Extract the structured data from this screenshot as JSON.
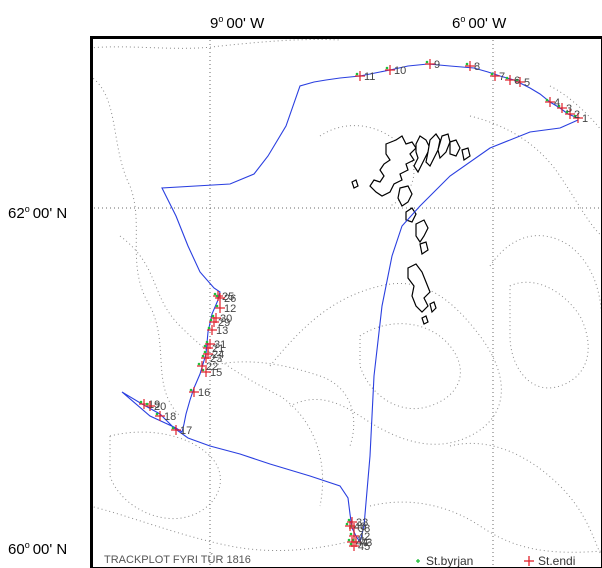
{
  "top_labels": [
    {
      "deg": "9",
      "rest": "00' W"
    },
    {
      "deg": "6",
      "rest": "00' W"
    }
  ],
  "left_labels": [
    {
      "deg": "62",
      "rest": "00' N"
    },
    {
      "deg": "60",
      "rest": "00' N"
    }
  ],
  "title": "TRACKPLOT FYRI TÚR 1816",
  "legend": {
    "start": {
      "label": "St.byrjan",
      "color": "#1fbf3a"
    },
    "end": {
      "label": "St.endi",
      "color": "#e0202a"
    }
  },
  "colors": {
    "track": "#2a3fe0",
    "station_label": "#444444",
    "coast": "#000000"
  },
  "stations": [
    {
      "label": "1",
      "sym": "+"
    },
    {
      "label": "2",
      "sym": "+"
    },
    {
      "label": "3",
      "sym": "+"
    },
    {
      "label": "4",
      "sym": "+"
    },
    {
      "label": "5",
      "sym": "+"
    },
    {
      "label": "6",
      "sym": "+"
    },
    {
      "label": "7",
      "sym": "+"
    },
    {
      "label": "8",
      "sym": "+"
    },
    {
      "label": "9",
      "sym": "+"
    },
    {
      "label": "10",
      "sym": "+"
    },
    {
      "label": "11",
      "sym": "+"
    },
    {
      "label": "12",
      "sym": "+"
    },
    {
      "label": "13",
      "sym": "+"
    },
    {
      "label": "15",
      "sym": "+"
    },
    {
      "label": "16",
      "sym": "+"
    },
    {
      "label": "17",
      "sym": "+"
    },
    {
      "label": "18",
      "sym": "+"
    },
    {
      "label": "19",
      "sym": "+"
    },
    {
      "label": "20",
      "sym": "+"
    },
    {
      "label": "21",
      "sym": "+"
    },
    {
      "label": "22",
      "sym": "+"
    },
    {
      "label": "23",
      "sym": "+"
    },
    {
      "label": "24",
      "sym": "+"
    },
    {
      "label": "25",
      "sym": "+"
    },
    {
      "label": "26",
      "sym": "+"
    },
    {
      "label": "29",
      "sym": "+"
    },
    {
      "label": "30",
      "sym": "+"
    },
    {
      "label": "31",
      "sym": "+"
    },
    {
      "label": "33",
      "sym": "+"
    },
    {
      "label": "38",
      "sym": "+"
    },
    {
      "label": "40",
      "sym": "+"
    },
    {
      "label": "42",
      "sym": "+"
    },
    {
      "label": "43",
      "sym": "+"
    },
    {
      "label": "44",
      "sym": "+"
    },
    {
      "label": "45",
      "sym": "+"
    }
  ]
}
